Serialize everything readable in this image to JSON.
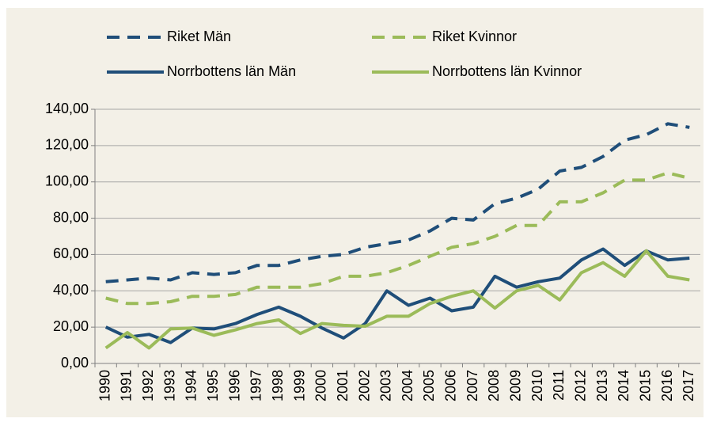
{
  "chart_data": {
    "type": "line",
    "categories": [
      "1990",
      "1991",
      "1992",
      "1993",
      "1994",
      "1995",
      "1996",
      "1997",
      "1998",
      "1999",
      "2000",
      "2001",
      "2002",
      "2003",
      "2004",
      "2005",
      "2006",
      "2007",
      "2008",
      "2009",
      "2010",
      "2011",
      "2012",
      "2013",
      "2014",
      "2015",
      "2016",
      "2017"
    ],
    "series": [
      {
        "name": "Riket Män",
        "color": "#1f4e79",
        "style": "dashed",
        "values": [
          45,
          46,
          47,
          46,
          50,
          49,
          50,
          54,
          54,
          57,
          59,
          60,
          64,
          66,
          68,
          73,
          80,
          79,
          88,
          91,
          96,
          106,
          108,
          114,
          123,
          126,
          132,
          130
        ]
      },
      {
        "name": "Riket Kvinnor",
        "color": "#9bbb59",
        "style": "dashed",
        "values": [
          36,
          33,
          33,
          34,
          37,
          37,
          38,
          42,
          42,
          42,
          44,
          48,
          48,
          50,
          54,
          59,
          64,
          66,
          70,
          76,
          76,
          89,
          89,
          94,
          101,
          101,
          105,
          102
        ]
      },
      {
        "name": "Norrbottens län Män",
        "color": "#1f4e79",
        "style": "solid",
        "values": [
          20,
          14.5,
          16,
          11.5,
          19.5,
          19,
          22,
          27,
          31,
          26,
          19.5,
          14,
          22,
          40,
          32,
          36,
          29,
          31,
          48,
          42,
          45,
          47,
          57,
          63,
          54,
          62,
          57,
          58
        ]
      },
      {
        "name": "Norrbottens län Kvinnor",
        "color": "#9bbb59",
        "style": "solid",
        "values": [
          8.5,
          17,
          8.5,
          19,
          19.5,
          15.5,
          18.5,
          22,
          24,
          16.5,
          22,
          21,
          20.5,
          26,
          26,
          33,
          37,
          40,
          30.5,
          40,
          43,
          35,
          50,
          55.5,
          48,
          62,
          48,
          46
        ]
      }
    ],
    "ylim": [
      0,
      140
    ],
    "yticks": [
      {
        "value": 0,
        "label": "0,00"
      },
      {
        "value": 20,
        "label": "20,00"
      },
      {
        "value": 40,
        "label": "40,00"
      },
      {
        "value": 60,
        "label": "60,00"
      },
      {
        "value": 80,
        "label": "80,00"
      },
      {
        "value": 100,
        "label": "100,00"
      },
      {
        "value": 120,
        "label": "120,00"
      },
      {
        "value": 140,
        "label": "140,00"
      }
    ],
    "grid": true
  }
}
